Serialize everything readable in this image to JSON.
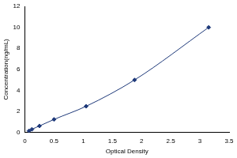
{
  "chart_data": {
    "type": "line",
    "x_label": "Optical Density",
    "y_label": "Concentration(ng/mL)",
    "x": [
      0.07,
      0.12,
      0.25,
      0.5,
      1.05,
      1.88,
      3.15
    ],
    "values": [
      0.16,
      0.31,
      0.63,
      1.25,
      2.5,
      5,
      10
    ],
    "color": "#1f3a7a",
    "marker": "diamond",
    "line_style": "solid",
    "xlim": [
      0,
      3.5
    ],
    "xticks": [
      0,
      0.5,
      1,
      1.5,
      2,
      2.5,
      3,
      3.5
    ],
    "ylim": [
      0,
      12
    ],
    "yticks": [
      0,
      2,
      4,
      6,
      8,
      10,
      12
    ],
    "grid": false
  }
}
